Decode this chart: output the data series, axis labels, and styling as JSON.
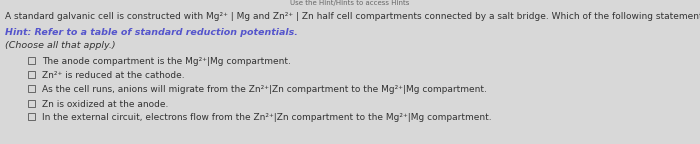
{
  "bg_color": "#d8d8d8",
  "text_color": "#333333",
  "hint_color": "#5555cc",
  "choose_color": "#333333",
  "top_text": "Use the Hint/Hints to access Hints",
  "header": "A standard galvanic cell is constructed with Mg²⁺ | Mg and Zn²⁺ | Zn half cell compartments connected by a salt bridge. Which of the following statements are correct?",
  "hint": "Hint: Refer to a table of standard reduction potentials.",
  "choose": "(Choose all that apply.)",
  "options": [
    "The anode compartment is the Mg²⁺|Mg compartment.",
    "Zn²⁺ is reduced at the cathode.",
    "As the cell runs, anions will migrate from the Zn²⁺|Zn compartment to the Mg²⁺|Mg compartment.",
    "Zn is oxidized at the anode.",
    "In the external circuit, electrons flow from the Zn²⁺|Zn compartment to the Mg²⁺|Mg compartment."
  ],
  "checkbox_color": "#555555",
  "figsize": [
    7.0,
    1.44
  ],
  "dpi": 100,
  "header_fontsize": 6.5,
  "hint_fontsize": 6.8,
  "choose_fontsize": 6.8,
  "option_fontsize": 6.5
}
